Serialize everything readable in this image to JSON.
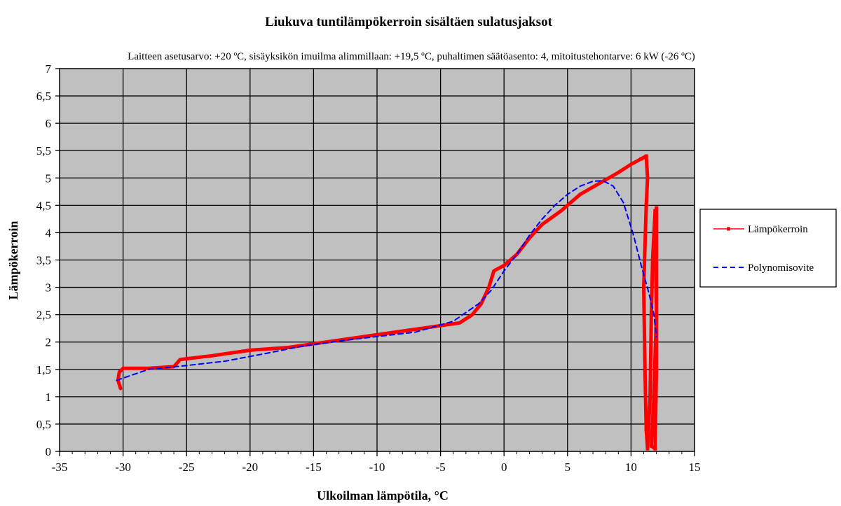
{
  "chart_data": {
    "type": "line",
    "title": "Liukuva tuntilämpökerroin sisältäen sulatusjaksot",
    "subtitle": "Laitteen asetusarvo: +20 ºC, sisäyksikön imuilma alimmillaan: +19,5 ºC, puhaltimen säätöasento: 4, mitoitustehontarve: 6 kW (-26 ºC)",
    "xlabel": "Ulkoilman lämpötila, °C",
    "ylabel": "Lämpökerroin",
    "xlim": [
      -35,
      15
    ],
    "ylim": [
      0,
      7
    ],
    "x_ticks": [
      "-35",
      "-30",
      "-25",
      "-20",
      "-15",
      "-10",
      "-5",
      "0",
      "5",
      "10",
      "15"
    ],
    "y_ticks": [
      "0",
      "0,5",
      "1",
      "1,5",
      "2",
      "2,5",
      "3",
      "3,5",
      "4",
      "4,5",
      "5",
      "5,5",
      "6",
      "6,5",
      "7"
    ],
    "grid": true,
    "plot_background": "#c0c0c0",
    "legend_position": "right",
    "series": [
      {
        "name": "Lämpökerroin",
        "color": "#ff0000",
        "style": "solid-with-markers",
        "points": [
          [
            -30.2,
            1.15
          ],
          [
            -30.4,
            1.3
          ],
          [
            -30.3,
            1.45
          ],
          [
            -30.0,
            1.52
          ],
          [
            -28.0,
            1.52
          ],
          [
            -26.0,
            1.55
          ],
          [
            -25.5,
            1.68
          ],
          [
            -23.0,
            1.75
          ],
          [
            -20.0,
            1.85
          ],
          [
            -17.0,
            1.9
          ],
          [
            -14.0,
            2.0
          ],
          [
            -11.0,
            2.1
          ],
          [
            -8.0,
            2.2
          ],
          [
            -5.0,
            2.3
          ],
          [
            -3.5,
            2.35
          ],
          [
            -2.5,
            2.5
          ],
          [
            -1.8,
            2.7
          ],
          [
            -1.2,
            3.0
          ],
          [
            -0.8,
            3.3
          ],
          [
            0.0,
            3.4
          ],
          [
            1.0,
            3.6
          ],
          [
            2.0,
            3.9
          ],
          [
            3.0,
            4.15
          ],
          [
            4.5,
            4.4
          ],
          [
            6.0,
            4.7
          ],
          [
            7.5,
            4.9
          ],
          [
            9.0,
            5.1
          ],
          [
            10.0,
            5.25
          ],
          [
            10.8,
            5.35
          ],
          [
            11.2,
            5.4
          ],
          [
            11.3,
            5.0
          ],
          [
            11.2,
            4.5
          ],
          [
            11.0,
            3.0
          ],
          [
            11.1,
            1.5
          ],
          [
            11.2,
            0.4
          ],
          [
            11.3,
            0.05
          ],
          [
            11.5,
            1.0
          ],
          [
            11.6,
            2.5
          ],
          [
            11.7,
            3.5
          ],
          [
            11.9,
            4.4
          ],
          [
            12.0,
            2.5
          ],
          [
            11.8,
            1.0
          ],
          [
            11.6,
            0.1
          ],
          [
            11.9,
            0.05
          ],
          [
            12.0,
            1.5
          ],
          [
            12.0,
            4.45
          ]
        ]
      },
      {
        "name": "Polynomisovite",
        "color": "#0000ff",
        "style": "dashed",
        "points": [
          [
            -30.5,
            1.3
          ],
          [
            -28,
            1.5
          ],
          [
            -25,
            1.57
          ],
          [
            -22,
            1.65
          ],
          [
            -19,
            1.78
          ],
          [
            -16,
            1.92
          ],
          [
            -13,
            2.02
          ],
          [
            -10,
            2.1
          ],
          [
            -7,
            2.18
          ],
          [
            -4,
            2.38
          ],
          [
            -2,
            2.7
          ],
          [
            -1,
            2.95
          ],
          [
            0,
            3.3
          ],
          [
            1,
            3.6
          ],
          [
            2,
            3.95
          ],
          [
            3,
            4.25
          ],
          [
            4,
            4.5
          ],
          [
            5,
            4.7
          ],
          [
            6,
            4.85
          ],
          [
            7,
            4.94
          ],
          [
            7.8,
            4.95
          ],
          [
            8.6,
            4.85
          ],
          [
            9.4,
            4.55
          ],
          [
            10.2,
            3.95
          ],
          [
            10.8,
            3.4
          ],
          [
            11.4,
            2.9
          ],
          [
            11.8,
            2.5
          ],
          [
            12.0,
            2.1
          ]
        ]
      }
    ]
  }
}
